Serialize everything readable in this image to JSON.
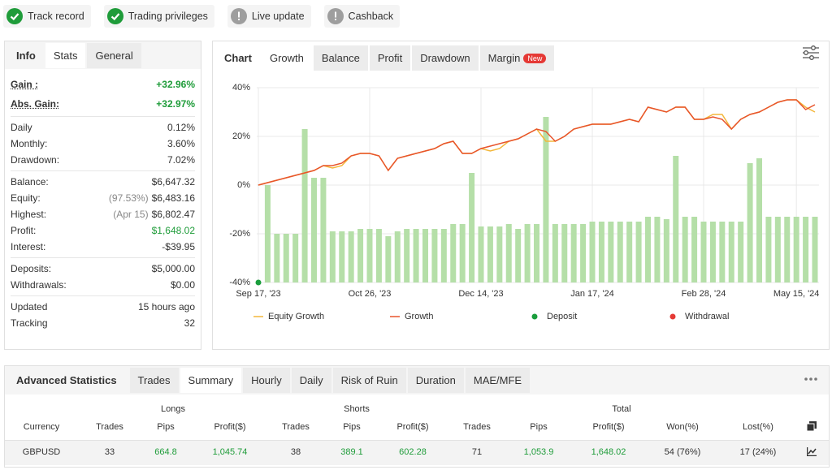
{
  "badges": [
    {
      "label": "Track record",
      "ok": true
    },
    {
      "label": "Trading privileges",
      "ok": true
    },
    {
      "label": "Live update",
      "ok": false
    },
    {
      "label": "Cashback",
      "ok": false
    }
  ],
  "info": {
    "tabs": [
      "Info",
      "Stats",
      "General"
    ],
    "active_tab": 1,
    "groups": [
      [
        {
          "label": "Gain :",
          "value": "+32.96%",
          "positive": true
        },
        {
          "label": "Abs. Gain:",
          "value": "+32.97%",
          "positive": true
        }
      ],
      [
        {
          "label": "Daily",
          "value": "0.12%"
        },
        {
          "label": "Monthly:",
          "value": "3.60%"
        },
        {
          "label": "Drawdown:",
          "value": "7.02%"
        }
      ],
      [
        {
          "label": "Balance:",
          "value": "$6,647.32"
        },
        {
          "label": "Equity:",
          "note": "(97.53%)",
          "value": "$6,483.16"
        },
        {
          "label": "Highest:",
          "note": "(Apr 15)",
          "value": "$6,802.47"
        },
        {
          "label": "Profit:",
          "value": "$1,648.02",
          "positive": true
        },
        {
          "label": "Interest:",
          "value": "-$39.95"
        }
      ],
      [
        {
          "label": "Deposits:",
          "value": "$5,000.00"
        },
        {
          "label": "Withdrawals:",
          "value": "$0.00"
        }
      ],
      [
        {
          "label": "Updated",
          "value": "15 hours ago"
        },
        {
          "label": "Tracking",
          "value": "32"
        }
      ]
    ]
  },
  "chart_panel": {
    "label": "Chart",
    "tabs": [
      "Growth",
      "Balance",
      "Profit",
      "Drawdown",
      "Margin"
    ],
    "active_tab": 0,
    "new_badge": "New"
  },
  "chart_data": {
    "type": "combo",
    "categories": [
      "Sep 17, '23",
      null,
      null,
      null,
      null,
      null,
      null,
      null,
      null,
      null,
      null,
      null,
      "Oct 26, '23",
      null,
      null,
      null,
      null,
      null,
      null,
      null,
      null,
      null,
      null,
      null,
      "Dec 14, '23",
      null,
      null,
      null,
      null,
      null,
      null,
      null,
      null,
      null,
      null,
      null,
      "Jan 17, '24",
      null,
      null,
      null,
      null,
      null,
      null,
      null,
      null,
      null,
      null,
      null,
      "Feb 28, '24",
      null,
      null,
      null,
      null,
      null,
      null,
      null,
      null,
      null,
      "May 15, '24",
      null,
      null
    ],
    "ylim": [
      -40,
      40
    ],
    "yticks": [
      {
        "value": -40,
        "label": "-40%"
      },
      {
        "value": -20,
        "label": "-20%"
      },
      {
        "value": 0,
        "label": "0%"
      },
      {
        "value": 20,
        "label": "20%"
      },
      {
        "value": 40,
        "label": "40%"
      }
    ],
    "grid": true,
    "bars": {
      "color": "#b5dfa8",
      "values": [
        null,
        0,
        -20,
        -20,
        -20,
        23,
        3,
        3,
        -19,
        -19,
        -19,
        -18,
        -18,
        -18,
        -21,
        -19,
        -18,
        -18,
        -18,
        -18,
        -18,
        -16,
        -16,
        5,
        -17,
        -17,
        -17,
        -16,
        -18,
        -16,
        -16,
        28,
        -16,
        -16,
        -16,
        -16,
        -15,
        -15,
        -15,
        -15,
        -15,
        -15,
        -13,
        -13,
        -14,
        12,
        -13,
        -13,
        -15,
        -15,
        -15,
        -15,
        -15,
        9,
        11,
        -13,
        -13,
        -13,
        -13,
        -13,
        -13
      ]
    },
    "series": [
      {
        "name": "Equity Growth",
        "type": "line",
        "color": "#f3b73b",
        "values": [
          0,
          1,
          2,
          3,
          4,
          5,
          6,
          8,
          7,
          8,
          12,
          13,
          13,
          12,
          6,
          11,
          12,
          13,
          14,
          15,
          17,
          18,
          13,
          13,
          15,
          14,
          15,
          18,
          19,
          21,
          23,
          18,
          18,
          20,
          23,
          24,
          25,
          25,
          25,
          26,
          27,
          26,
          32,
          31,
          30,
          32,
          32,
          27,
          27,
          29,
          29,
          23,
          27,
          29,
          30,
          32,
          34,
          35,
          35,
          32,
          30
        ]
      },
      {
        "name": "Growth",
        "type": "line",
        "color": "#e8542c",
        "values": [
          0,
          1,
          2,
          3,
          4,
          5,
          6,
          8,
          8,
          9,
          12,
          13,
          13,
          12,
          6,
          11,
          12,
          13,
          14,
          15,
          17,
          18,
          13,
          13,
          15,
          16,
          17,
          18,
          19,
          21,
          23,
          22,
          18,
          20,
          23,
          24,
          25,
          25,
          25,
          26,
          27,
          26,
          32,
          31,
          30,
          32,
          32,
          27,
          27,
          28,
          27,
          23,
          27,
          29,
          30,
          32,
          34,
          35,
          35,
          31,
          33
        ]
      },
      {
        "name": "Deposit",
        "type": "marker",
        "color": "#1a9e3c",
        "values": [
          -40,
          null,
          null,
          null,
          null,
          null,
          null,
          null,
          null,
          null,
          null,
          null,
          null,
          null,
          null,
          null,
          null,
          null,
          null,
          null,
          null,
          null,
          null,
          null,
          null,
          null,
          null,
          null,
          null,
          null,
          null,
          null,
          null,
          null,
          null,
          null,
          null,
          null,
          null,
          null,
          null,
          null,
          null,
          null,
          null,
          null,
          null,
          null,
          null,
          null,
          null,
          null,
          null,
          null,
          null,
          null,
          null,
          null,
          null,
          null,
          null
        ]
      },
      {
        "name": "Withdrawal",
        "type": "marker",
        "color": "#e53935",
        "values": [
          null,
          null,
          null,
          null,
          null,
          null,
          null,
          null,
          null,
          null,
          null,
          null,
          null,
          null,
          null,
          null,
          null,
          null,
          null,
          null,
          null,
          null,
          null,
          null,
          null,
          null,
          null,
          null,
          null,
          null,
          null,
          null,
          null,
          null,
          null,
          null,
          null,
          null,
          null,
          null,
          null,
          null,
          null,
          null,
          null,
          null,
          null,
          null,
          null,
          null,
          null,
          null,
          null,
          null,
          null,
          null,
          null,
          null,
          null,
          null,
          null
        ]
      }
    ]
  },
  "advanced": {
    "title": "Advanced Statistics",
    "tabs": [
      "Trades",
      "Summary",
      "Hourly",
      "Daily",
      "Risk of Ruin",
      "Duration",
      "MAE/MFE"
    ],
    "active_tab": 1,
    "groups": [
      "Longs",
      "Shorts",
      "Total"
    ],
    "columns": [
      "Currency",
      "Trades",
      "Pips",
      "Profit($)",
      "Trades",
      "Pips",
      "Profit($)",
      "Trades",
      "Pips",
      "Profit($)",
      "Won(%)",
      "Lost(%)"
    ],
    "rows": [
      [
        "GBPUSD",
        "33",
        "664.8",
        "1,045.74",
        "38",
        "389.1",
        "602.28",
        "71",
        "1,053.9",
        "1,648.02",
        "54 (76%)",
        "17 (24%)"
      ]
    ]
  }
}
